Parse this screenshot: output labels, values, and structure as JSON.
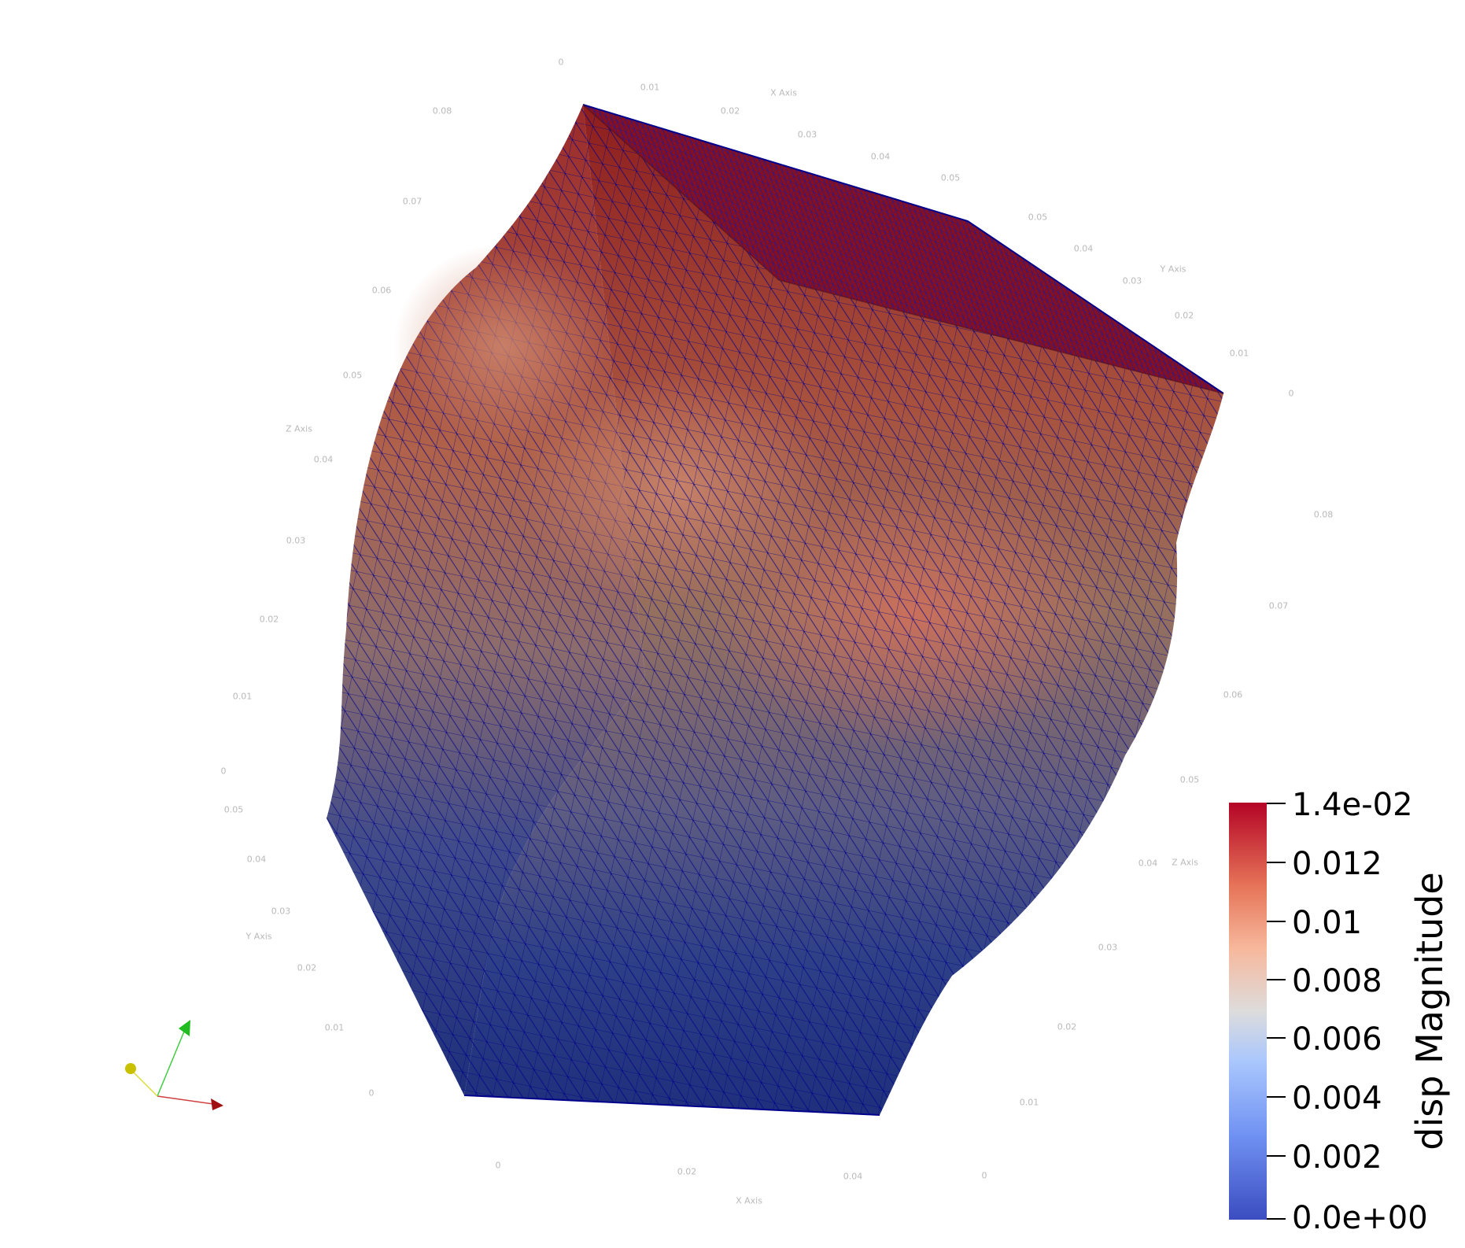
{
  "scalar_bar": {
    "title": "disp Magnitude",
    "labels": [
      "1.4e-02",
      "0.012",
      "0.01",
      "0.008",
      "0.006",
      "0.004",
      "0.002",
      "0.0e+00"
    ]
  },
  "axis_titles": {
    "x_top": "X Axis",
    "y_right": "Y Axis",
    "z_left": "Z Axis",
    "y_left": "Y Axis",
    "z_right": "Z Axis",
    "x_bottom": "X Axis"
  },
  "axis_ticks": {
    "top_x": [
      "0",
      "0.01",
      "0.02",
      "0.03",
      "0.04",
      "0.05"
    ],
    "top_z": [
      "0.08"
    ],
    "right_y": [
      "0.05",
      "0.04",
      "0.03",
      "0.02",
      "0.01",
      "0"
    ],
    "left_z": [
      "0.07",
      "0.06",
      "0.05",
      "0.04",
      "0.03",
      "0.02",
      "0.01",
      "0"
    ],
    "left_y": [
      "0.05",
      "0.04",
      "0.03",
      "0.02",
      "0.01",
      "0"
    ],
    "right_z": [
      "0.08",
      "0.07",
      "0.06",
      "0.05",
      "0.04",
      "0.03",
      "0.02",
      "0.01",
      "0"
    ],
    "bottom_x": [
      "0",
      "0.02",
      "0.04"
    ]
  },
  "colors": {
    "high": "#b40426",
    "mid": "#dddcdc",
    "low": "#3b4cc0",
    "mesh_lines": "#00008b",
    "tick_text": "#b9b9b9",
    "x_axis": "#b22222",
    "y_axis": "#22bb22",
    "z_axis": "#cccc00"
  },
  "orientation_axes": [
    "x-arrow",
    "y-arrow",
    "z-arrow"
  ]
}
